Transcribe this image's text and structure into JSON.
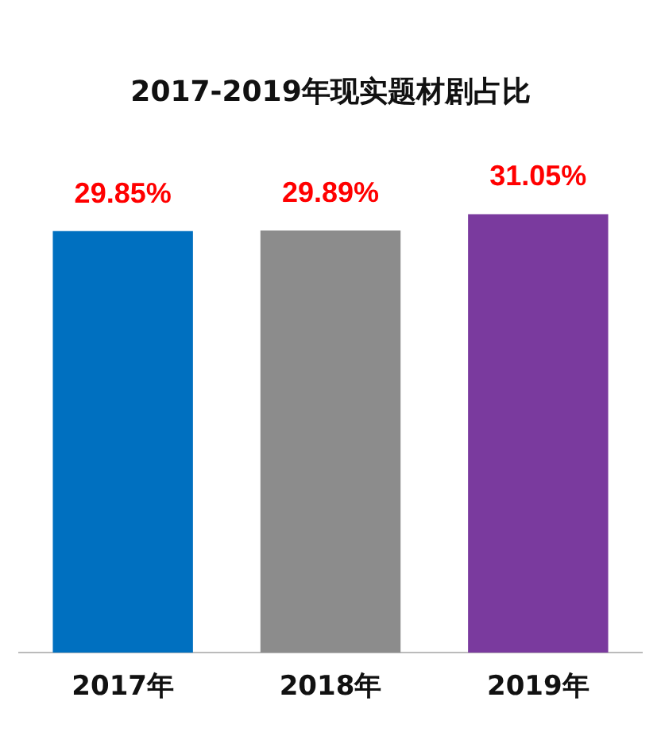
{
  "chart_data": {
    "type": "bar",
    "title": "2017-2019年现实题材剧占比",
    "categories": [
      "2017年",
      "2018年",
      "2019年"
    ],
    "values": [
      29.85,
      29.89,
      31.05
    ],
    "colors": [
      "#0070c0",
      "#8c8c8c",
      "#7a3a9e"
    ],
    "value_labels": [
      "29.85%",
      "29.89%",
      "31.05%"
    ],
    "grid": false,
    "legend": false
  }
}
